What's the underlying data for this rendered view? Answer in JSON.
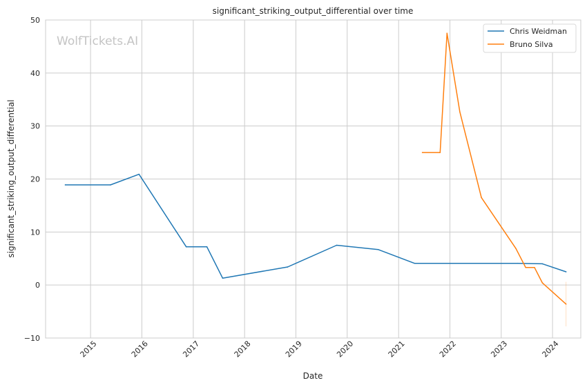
{
  "chart_data": {
    "type": "line",
    "title": "significant_striking_output_differential over time",
    "xlabel": "Date",
    "ylabel": "significant_striking_output_differential",
    "watermark": "WolfTickets.AI",
    "ylim": [
      -10,
      50
    ],
    "yticks": [
      -10,
      0,
      10,
      20,
      30,
      40,
      50
    ],
    "xlim": [
      "2014-02-15",
      "2024-07-20"
    ],
    "xticks": [
      {
        "date": "2015-01-01",
        "label": "2015"
      },
      {
        "date": "2016-01-01",
        "label": "2016"
      },
      {
        "date": "2017-01-01",
        "label": "2017"
      },
      {
        "date": "2018-01-01",
        "label": "2018"
      },
      {
        "date": "2019-01-01",
        "label": "2019"
      },
      {
        "date": "2020-01-01",
        "label": "2020"
      },
      {
        "date": "2021-01-01",
        "label": "2021"
      },
      {
        "date": "2022-01-01",
        "label": "2022"
      },
      {
        "date": "2023-01-01",
        "label": "2023"
      },
      {
        "date": "2024-01-01",
        "label": "2024"
      }
    ],
    "grid": true,
    "legend_position": "top-right",
    "series": [
      {
        "name": "Chris Weidman",
        "color": "#1f77b4",
        "points": [
          {
            "x": "2014-07-05",
            "y": 18.9
          },
          {
            "x": "2015-05-23",
            "y": 18.9
          },
          {
            "x": "2015-12-12",
            "y": 20.9
          },
          {
            "x": "2016-11-12",
            "y": 7.2
          },
          {
            "x": "2017-04-08",
            "y": 7.2
          },
          {
            "x": "2017-07-29",
            "y": 1.3
          },
          {
            "x": "2018-11-03",
            "y": 3.4
          },
          {
            "x": "2019-10-18",
            "y": 7.5
          },
          {
            "x": "2020-08-08",
            "y": 6.7
          },
          {
            "x": "2021-04-24",
            "y": 4.1
          },
          {
            "x": "2023-04-29",
            "y": 4.1
          },
          {
            "x": "2023-10-21",
            "y": 4.0
          },
          {
            "x": "2024-04-06",
            "y": 2.5
          }
        ]
      },
      {
        "name": "Bruno Silva",
        "color": "#ff7f0e",
        "points": [
          {
            "x": "2021-06-19",
            "y": 25.0
          },
          {
            "x": "2021-10-23",
            "y": 25.0
          },
          {
            "x": "2021-12-11",
            "y": 47.5
          },
          {
            "x": "2022-03-12",
            "y": 32.7
          },
          {
            "x": "2022-08-13",
            "y": 16.5
          },
          {
            "x": "2023-04-15",
            "y": 6.9
          },
          {
            "x": "2023-06-24",
            "y": 3.3
          },
          {
            "x": "2023-08-26",
            "y": 3.3
          },
          {
            "x": "2023-10-21",
            "y": 0.4
          },
          {
            "x": "2024-04-06",
            "y": -3.6
          }
        ],
        "band": {
          "x": "2024-04-06",
          "low": -7.8,
          "high": 0.6
        }
      }
    ]
  }
}
